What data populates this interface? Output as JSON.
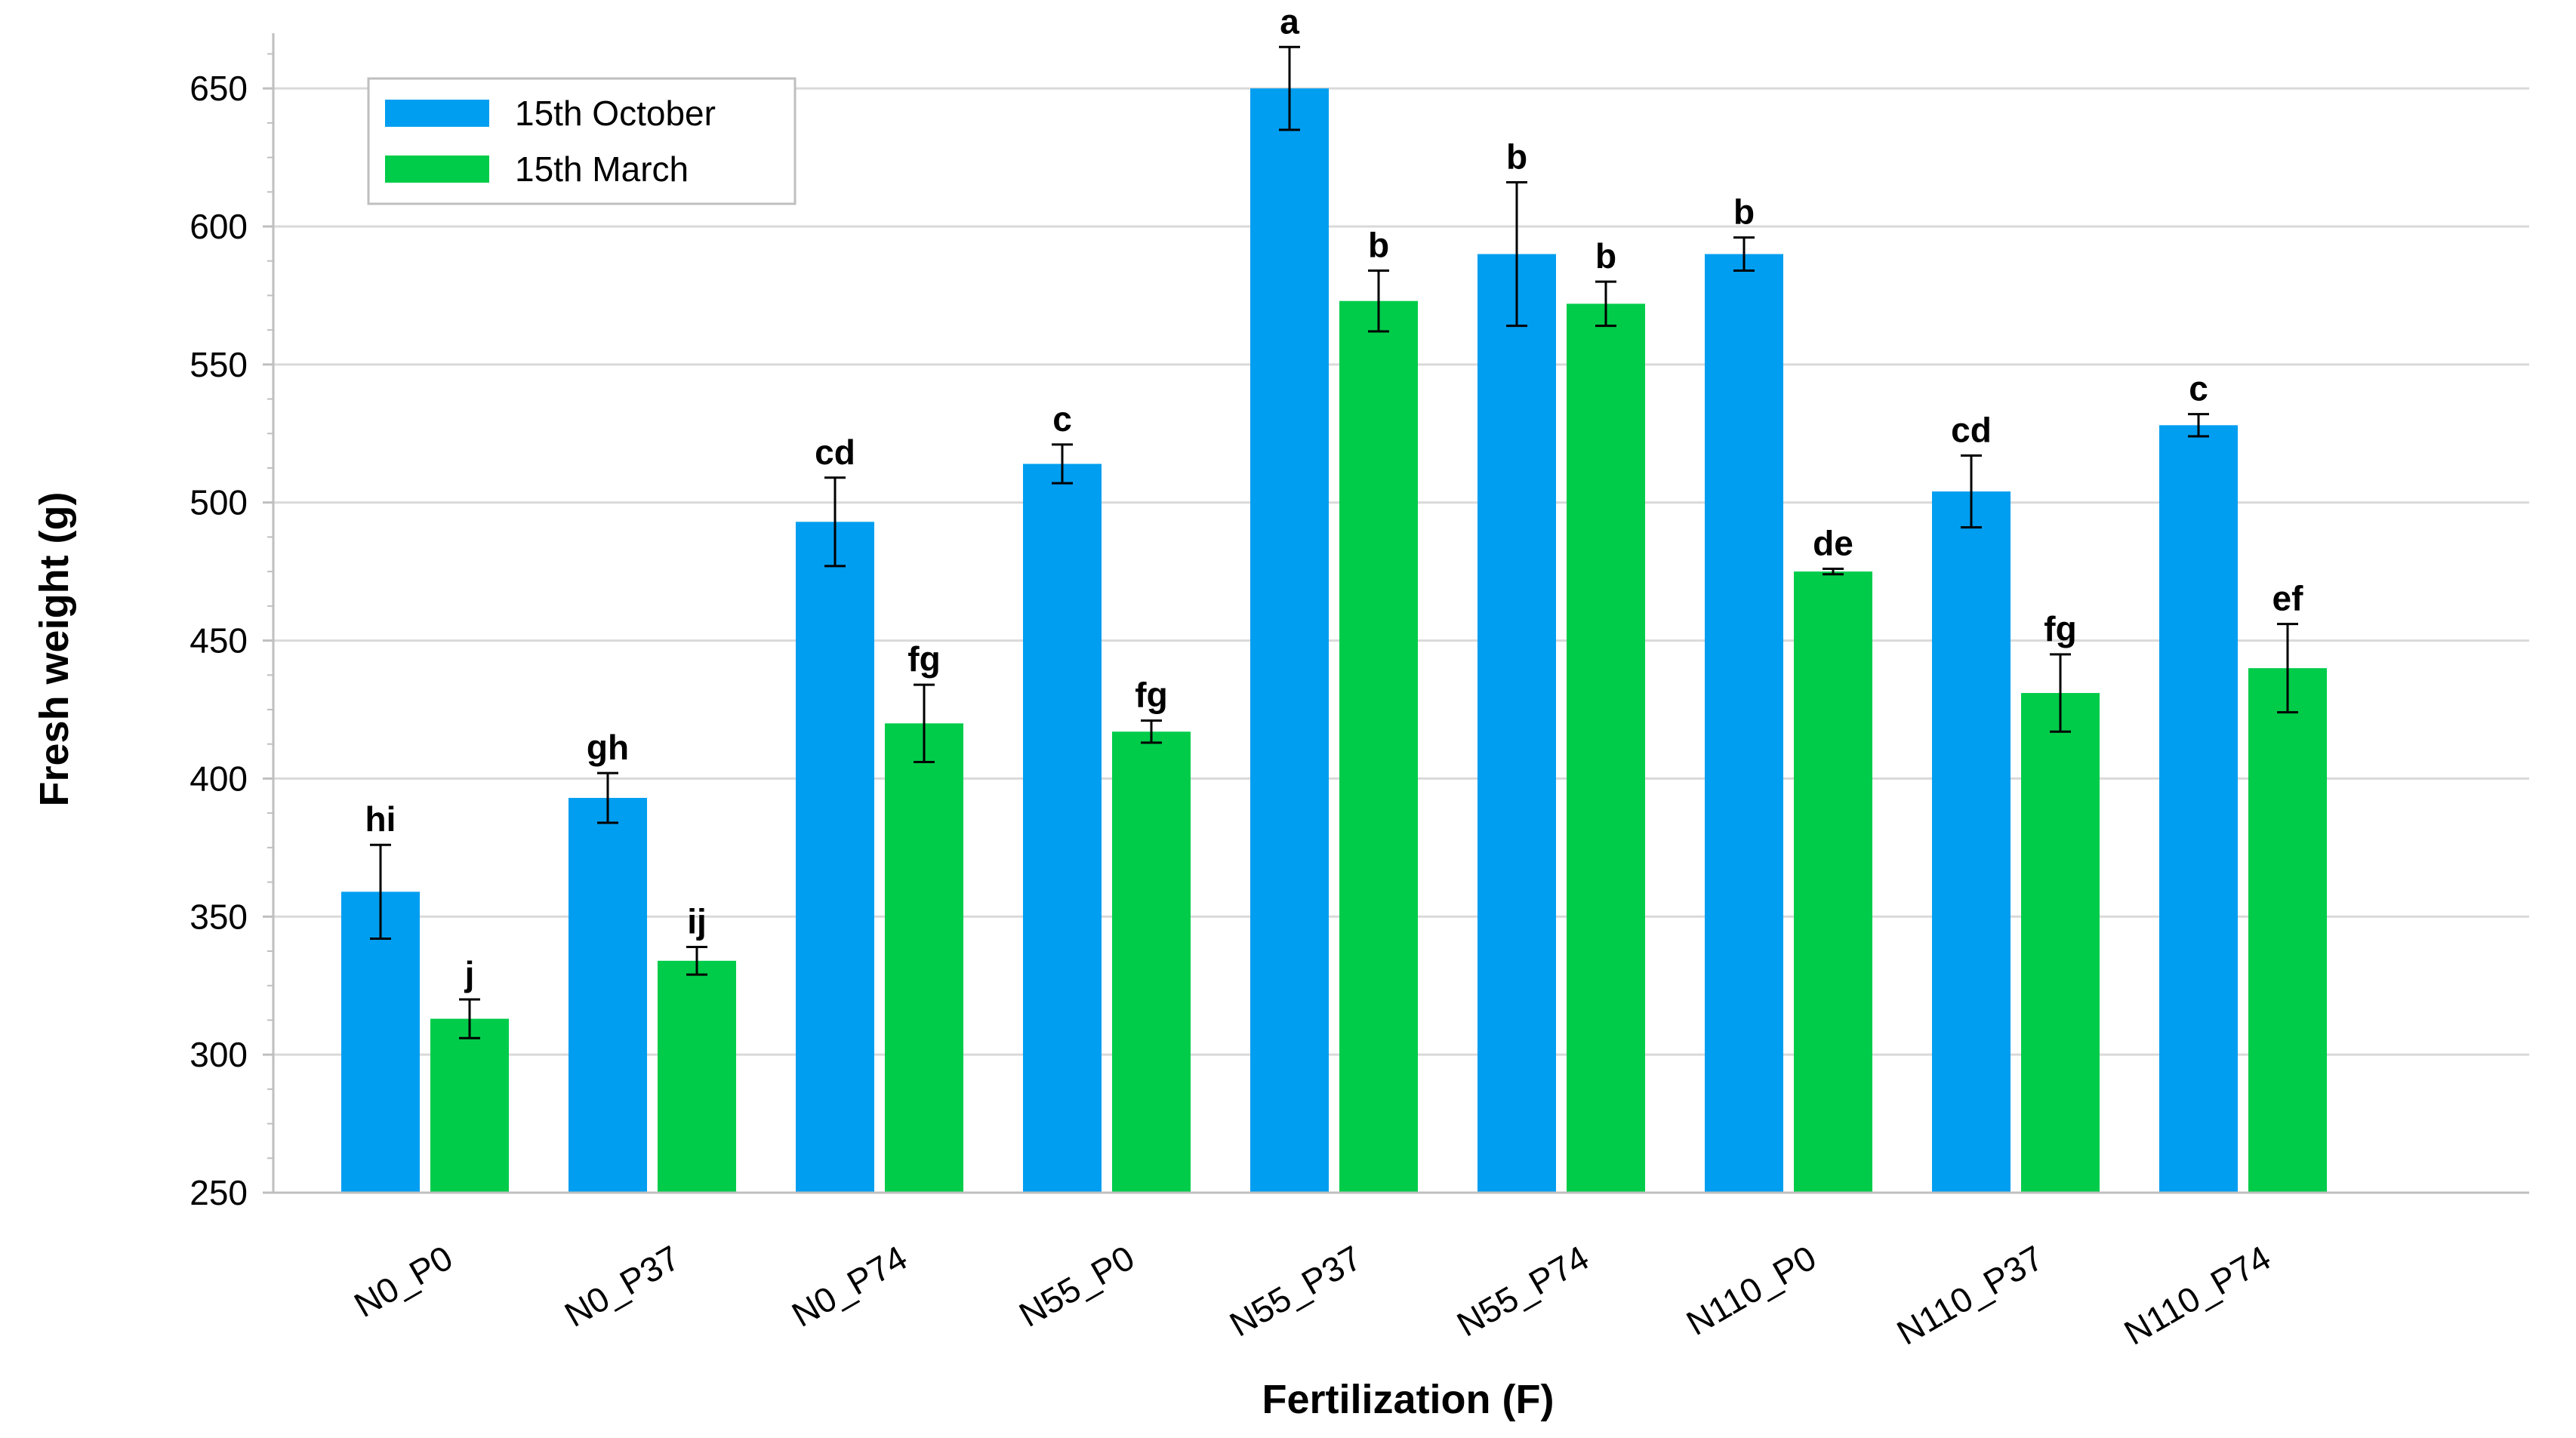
{
  "chart_data": {
    "type": "bar",
    "title": "",
    "xlabel": "Fertilization (F)",
    "ylabel": "Fresh weight (g)",
    "ylim": [
      250,
      670
    ],
    "yticks": [
      250,
      300,
      350,
      400,
      450,
      500,
      550,
      600,
      650
    ],
    "ytick_labels": [
      "250",
      "300",
      "350",
      "400",
      "450",
      "500",
      "550",
      "600",
      "650"
    ],
    "minor_step": 12.5,
    "grid": true,
    "legend_position": "top-left",
    "categories": [
      "N0_P0",
      "N0_P37",
      "N0_P74",
      "N55_P0",
      "N55_P37",
      "N55_P74",
      "N110_P0",
      "N110_P37",
      "N110_P74"
    ],
    "series": [
      {
        "name": "15th October",
        "color": "#009ef0",
        "values": [
          359,
          393,
          493,
          514,
          650,
          590,
          590,
          504,
          528
        ],
        "errors": [
          17,
          9,
          16,
          7,
          15,
          26,
          6,
          13,
          4
        ],
        "letters": [
          "hi",
          "gh",
          "cd",
          "c",
          "a",
          "b",
          "b",
          "cd",
          "c"
        ]
      },
      {
        "name": "15th March",
        "color": "#00cc4a",
        "values": [
          313,
          334,
          420,
          417,
          573,
          572,
          475,
          431,
          440
        ],
        "errors": [
          7,
          5,
          14,
          4,
          11,
          8,
          1,
          14,
          16
        ],
        "letters": [
          "j",
          "ij",
          "fg",
          "fg",
          "b",
          "b",
          "de",
          "fg",
          "ef"
        ]
      }
    ]
  }
}
